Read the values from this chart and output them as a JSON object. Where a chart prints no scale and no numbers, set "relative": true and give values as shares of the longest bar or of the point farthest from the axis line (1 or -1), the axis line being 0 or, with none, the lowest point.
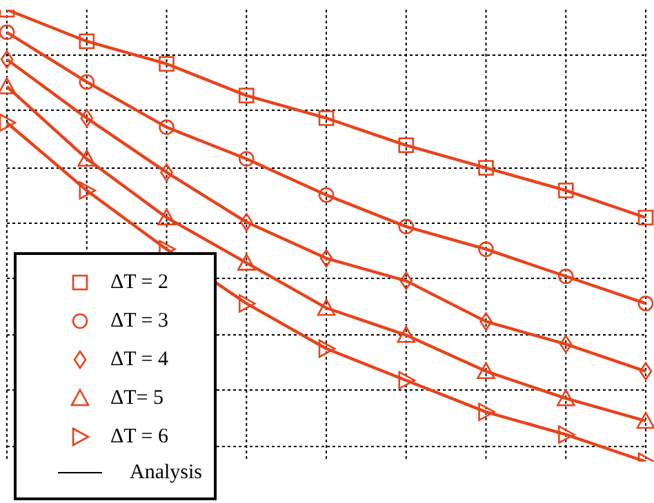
{
  "chart_data": {
    "type": "line",
    "relative": true,
    "categories": [
      null,
      null,
      null,
      null,
      null,
      null,
      null,
      null,
      null
    ],
    "series": [
      {
        "name": "ΔT = 2",
        "color": "#e8431c",
        "marker": "square",
        "values": [
          1,
          0.93,
          0.88,
          0.81,
          0.76,
          0.7,
          0.65,
          0.6,
          0.54
        ]
      },
      {
        "name": "ΔT = 3",
        "color": "#e8431c",
        "marker": "circle",
        "values": [
          0.95,
          0.84,
          0.74,
          0.67,
          0.59,
          0.52,
          0.47,
          0.41,
          0.35
        ]
      },
      {
        "name": "ΔT = 4",
        "color": "#e8431c",
        "marker": "diamond",
        "values": [
          0.89,
          0.76,
          0.64,
          0.53,
          0.45,
          0.4,
          0.31,
          0.26,
          0.2
        ]
      },
      {
        "name": "ΔT= 5",
        "color": "#e8431c",
        "marker": "triangle",
        "values": [
          0.83,
          0.67,
          0.54,
          0.44,
          0.34,
          0.28,
          0.2,
          0.14,
          0.09
        ]
      },
      {
        "name": "ΔT = 6",
        "color": "#e8431c",
        "marker": "triangle-right",
        "values": [
          0.75,
          0.6,
          0.47,
          0.35,
          0.25,
          0.18,
          0.11,
          0.06,
          0
        ]
      }
    ],
    "annotations": [
      "Analysis"
    ],
    "grid": true,
    "legend": "bottom left",
    "line_style": "solid"
  }
}
